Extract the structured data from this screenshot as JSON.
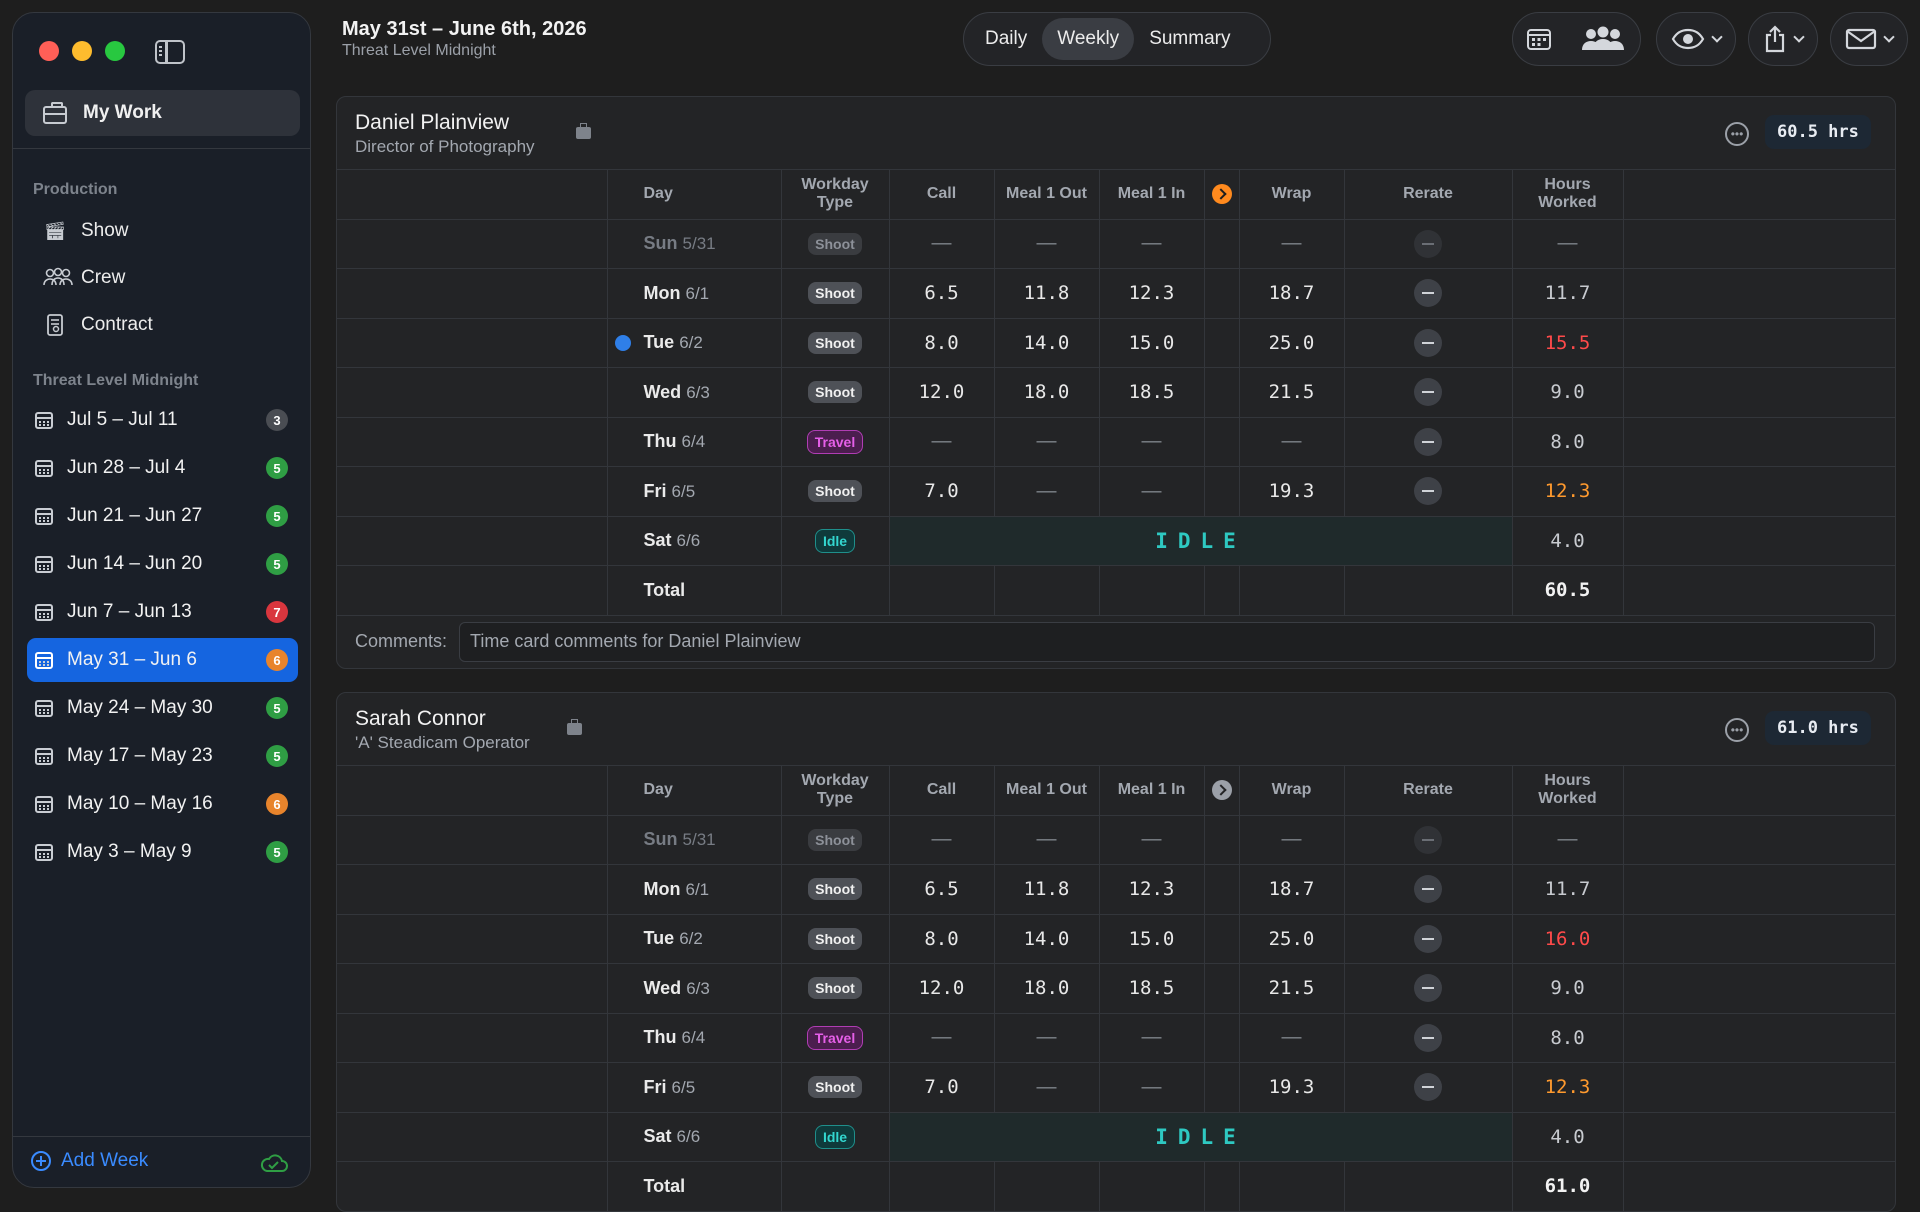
{
  "sidebar": {
    "my_work": "My Work",
    "production_heading": "Production",
    "production_items": [
      {
        "label": "Show",
        "icon": "clapperboard-icon"
      },
      {
        "label": "Crew",
        "icon": "people-icon"
      },
      {
        "label": "Contract",
        "icon": "document-icon"
      }
    ],
    "project_heading": "Threat Level Midnight",
    "weeks": [
      {
        "label": "Jul 5 – Jul 11",
        "count": "3",
        "color": "#4a4d53"
      },
      {
        "label": "Jun 28 – Jul 4",
        "count": "5",
        "color": "#2f9e44"
      },
      {
        "label": "Jun 21 – Jun 27",
        "count": "5",
        "color": "#2f9e44"
      },
      {
        "label": "Jun 14 – Jun 20",
        "count": "5",
        "color": "#2f9e44"
      },
      {
        "label": "Jun 7 – Jun 13",
        "count": "7",
        "color": "#d9363e"
      },
      {
        "label": "May 31 – Jun 6",
        "count": "6",
        "color": "#e8842c"
      },
      {
        "label": "May 24 – May 30",
        "count": "5",
        "color": "#2f9e44"
      },
      {
        "label": "May 17 – May 23",
        "count": "5",
        "color": "#2f9e44"
      },
      {
        "label": "May 10 – May 16",
        "count": "6",
        "color": "#e8842c"
      },
      {
        "label": "May 3 – May 9",
        "count": "5",
        "color": "#2f9e44"
      }
    ],
    "add_week": "Add Week"
  },
  "header": {
    "title": "May 31st – June 6th, 2026",
    "subtitle": "Threat Level Midnight",
    "views": [
      "Daily",
      "Weekly",
      "Summary"
    ],
    "active_view": "Weekly"
  },
  "columns": {
    "day": "Day",
    "workday_type_1": "Workday",
    "workday_type_2": "Type",
    "call": "Call",
    "meal1_out": "Meal 1 Out",
    "meal1_in": "Meal 1 In",
    "wrap": "Wrap",
    "rerate": "Rerate",
    "hours_1": "Hours",
    "hours_2": "Worked"
  },
  "idle_text": "IDLE",
  "total_label": "Total",
  "comments_label": "Comments:",
  "crew": [
    {
      "name": "Daniel Plainview",
      "role": "Director of Photography",
      "total_hours_pill": "60.5 hrs",
      "total": "60.5",
      "comment_placeholder": "Time card comments for Daniel Plainview",
      "rows": [
        {
          "day": "Sun",
          "date": "5/31",
          "type": "Shoot",
          "call": "—",
          "m1o": "—",
          "m1i": "—",
          "wrap": "—",
          "hours": "—",
          "dim": true
        },
        {
          "day": "Mon",
          "date": "6/1",
          "type": "Shoot",
          "call": "6.5",
          "m1o": "11.8",
          "m1i": "12.3",
          "wrap": "18.7",
          "hours": "11.7"
        },
        {
          "day": "Tue",
          "date": "6/2",
          "type": "Shoot",
          "call": "8.0",
          "m1o": "14.0",
          "m1i": "15.0",
          "wrap": "25.0",
          "hours": "15.5",
          "hours_color": "red",
          "info": true
        },
        {
          "day": "Wed",
          "date": "6/3",
          "type": "Shoot",
          "call": "12.0",
          "m1o": "18.0",
          "m1i": "18.5",
          "wrap": "21.5",
          "hours": "9.0"
        },
        {
          "day": "Thu",
          "date": "6/4",
          "type": "Travel",
          "call": "—",
          "m1o": "—",
          "m1i": "—",
          "wrap": "—",
          "hours": "8.0"
        },
        {
          "day": "Fri",
          "date": "6/5",
          "type": "Shoot",
          "call": "7.0",
          "m1o": "—",
          "m1i": "—",
          "wrap": "19.3",
          "hours": "12.3",
          "hours_color": "orange"
        },
        {
          "day": "Sat",
          "date": "6/6",
          "type": "Idle",
          "idle": true,
          "hours": "4.0"
        }
      ]
    },
    {
      "name": "Sarah Connor",
      "role": "'A' Steadicam Operator",
      "total_hours_pill": "61.0 hrs",
      "total": "61.0",
      "rows": [
        {
          "day": "Sun",
          "date": "5/31",
          "type": "Shoot",
          "call": "—",
          "m1o": "—",
          "m1i": "—",
          "wrap": "—",
          "hours": "—",
          "dim": true
        },
        {
          "day": "Mon",
          "date": "6/1",
          "type": "Shoot",
          "call": "6.5",
          "m1o": "11.8",
          "m1i": "12.3",
          "wrap": "18.7",
          "hours": "11.7"
        },
        {
          "day": "Tue",
          "date": "6/2",
          "type": "Shoot",
          "call": "8.0",
          "m1o": "14.0",
          "m1i": "15.0",
          "wrap": "25.0",
          "hours": "16.0",
          "hours_color": "red"
        },
        {
          "day": "Wed",
          "date": "6/3",
          "type": "Shoot",
          "call": "12.0",
          "m1o": "18.0",
          "m1i": "18.5",
          "wrap": "21.5",
          "hours": "9.0"
        },
        {
          "day": "Thu",
          "date": "6/4",
          "type": "Travel",
          "call": "—",
          "m1o": "—",
          "m1i": "—",
          "wrap": "—",
          "hours": "8.0"
        },
        {
          "day": "Fri",
          "date": "6/5",
          "type": "Shoot",
          "call": "7.0",
          "m1o": "—",
          "m1i": "—",
          "wrap": "19.3",
          "hours": "12.3",
          "hours_color": "orange"
        },
        {
          "day": "Sat",
          "date": "6/6",
          "type": "Idle",
          "idle": true,
          "hours": "4.0"
        }
      ]
    }
  ]
}
